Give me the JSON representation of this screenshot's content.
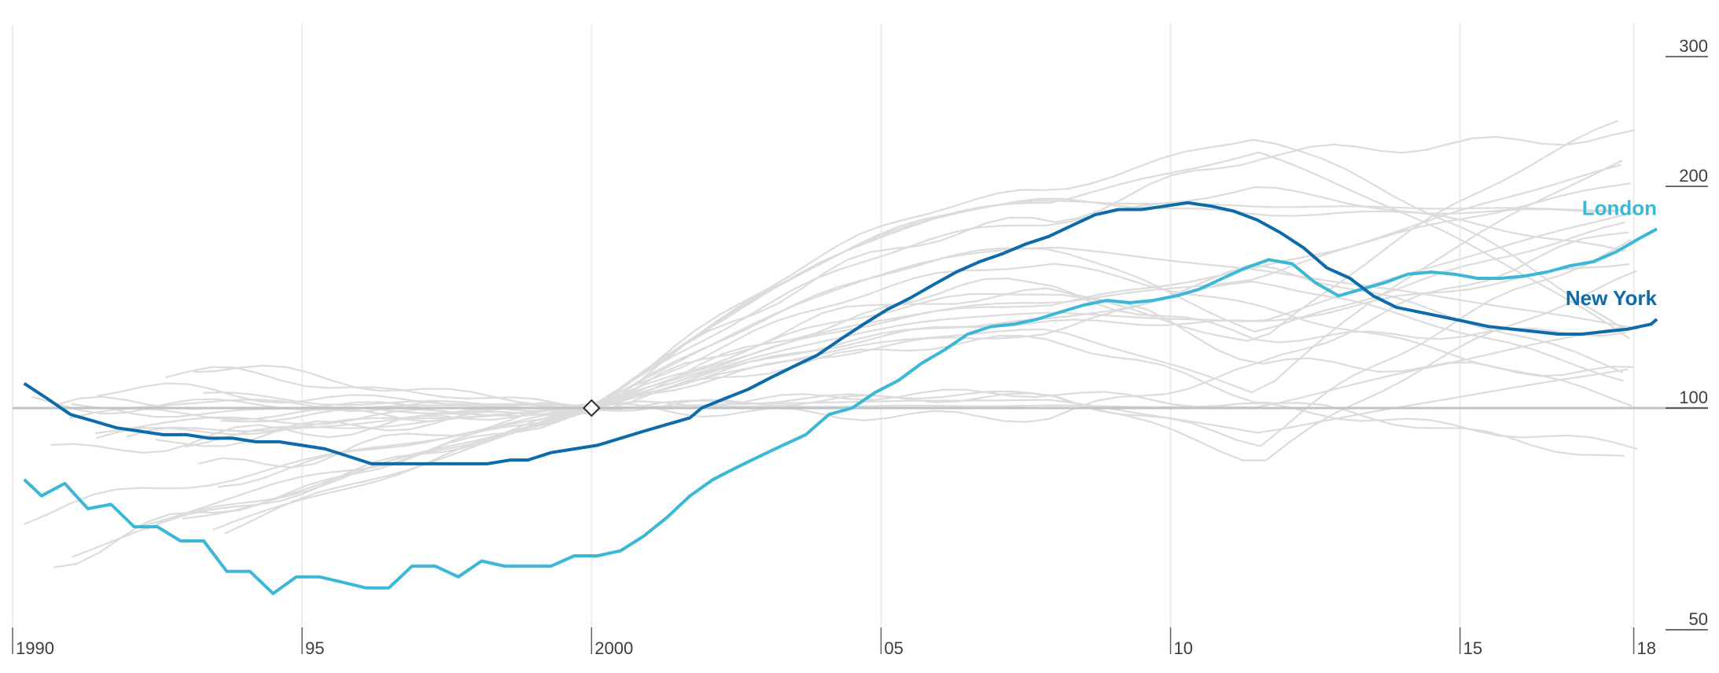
{
  "chart_data": {
    "type": "line",
    "x_axis": {
      "ticks": [
        1990,
        1995,
        2000,
        2005,
        2010,
        2015,
        2018
      ],
      "tick_labels": [
        "1990",
        "95",
        "2000",
        "05",
        "10",
        "15",
        "18"
      ],
      "range": [
        1990,
        2018.4
      ]
    },
    "y_axis": {
      "scale": "log",
      "ticks": [
        50,
        100,
        200,
        300
      ],
      "tick_labels": [
        "50",
        "100",
        "200",
        "300"
      ],
      "range": [
        50,
        340
      ]
    },
    "baseline": {
      "year": 2000,
      "value": 100
    },
    "grid": true,
    "highlight_series": [
      {
        "name": "London",
        "color": "#3ab8d6",
        "points": [
          [
            1990.2,
            80
          ],
          [
            1990.5,
            76
          ],
          [
            1990.9,
            79
          ],
          [
            1991.3,
            73
          ],
          [
            1991.7,
            74
          ],
          [
            1992.1,
            69
          ],
          [
            1992.5,
            69
          ],
          [
            1992.9,
            66
          ],
          [
            1993.3,
            66
          ],
          [
            1993.7,
            60
          ],
          [
            1994.1,
            60
          ],
          [
            1994.5,
            56
          ],
          [
            1994.9,
            59
          ],
          [
            1995.3,
            59
          ],
          [
            1995.7,
            58
          ],
          [
            1996.1,
            57
          ],
          [
            1996.5,
            57
          ],
          [
            1996.9,
            61
          ],
          [
            1997.3,
            61
          ],
          [
            1997.7,
            59
          ],
          [
            1998.1,
            62
          ],
          [
            1998.5,
            61
          ],
          [
            1998.9,
            61
          ],
          [
            1999.3,
            61
          ],
          [
            1999.7,
            63
          ],
          [
            2000.1,
            63
          ],
          [
            2000.5,
            64
          ],
          [
            2000.9,
            67
          ],
          [
            2001.3,
            71
          ],
          [
            2001.7,
            76
          ],
          [
            2002.1,
            80
          ],
          [
            2002.5,
            83
          ],
          [
            2002.9,
            86
          ],
          [
            2003.3,
            89
          ],
          [
            2003.7,
            92
          ],
          [
            2004.1,
            98
          ],
          [
            2004.5,
            100
          ],
          [
            2004.9,
            105
          ],
          [
            2005.3,
            109
          ],
          [
            2005.7,
            115
          ],
          [
            2006.1,
            120
          ],
          [
            2006.5,
            126
          ],
          [
            2006.9,
            129
          ],
          [
            2007.3,
            130
          ],
          [
            2007.7,
            132
          ],
          [
            2008.1,
            135
          ],
          [
            2008.5,
            138
          ],
          [
            2008.9,
            140
          ],
          [
            2009.3,
            139
          ],
          [
            2009.7,
            140
          ],
          [
            2010.1,
            142
          ],
          [
            2010.5,
            145
          ],
          [
            2010.9,
            150
          ],
          [
            2011.3,
            155
          ],
          [
            2011.7,
            159
          ],
          [
            2012.1,
            157
          ],
          [
            2012.5,
            148
          ],
          [
            2012.9,
            142
          ],
          [
            2013.3,
            145
          ],
          [
            2013.7,
            148
          ],
          [
            2014.1,
            152
          ],
          [
            2014.5,
            153
          ],
          [
            2014.9,
            152
          ],
          [
            2015.3,
            150
          ],
          [
            2015.7,
            150
          ],
          [
            2016.1,
            151
          ],
          [
            2016.5,
            153
          ],
          [
            2016.9,
            156
          ],
          [
            2017.3,
            158
          ],
          [
            2017.7,
            163
          ],
          [
            2018.1,
            170
          ],
          [
            2018.4,
            175
          ]
        ]
      },
      {
        "name": "New York",
        "color": "#0d6ba9",
        "points": [
          [
            1990.2,
            108
          ],
          [
            1990.6,
            103
          ],
          [
            1991.0,
            98
          ],
          [
            1991.4,
            96
          ],
          [
            1991.8,
            94
          ],
          [
            1992.2,
            93
          ],
          [
            1992.6,
            92
          ],
          [
            1993.0,
            92
          ],
          [
            1993.4,
            91
          ],
          [
            1993.8,
            91
          ],
          [
            1994.2,
            90
          ],
          [
            1994.6,
            90
          ],
          [
            1995.0,
            89
          ],
          [
            1995.4,
            88
          ],
          [
            1995.8,
            86
          ],
          [
            1996.2,
            84
          ],
          [
            1996.6,
            84
          ],
          [
            1997.0,
            84
          ],
          [
            1997.4,
            84
          ],
          [
            1997.8,
            84
          ],
          [
            1998.2,
            84
          ],
          [
            1998.6,
            85
          ],
          [
            1998.9,
            85
          ],
          [
            1999.3,
            87
          ],
          [
            1999.7,
            88
          ],
          [
            2000.1,
            89
          ],
          [
            2000.5,
            91
          ],
          [
            2000.9,
            93
          ],
          [
            2001.3,
            95
          ],
          [
            2001.7,
            97
          ],
          [
            2001.9,
            100
          ],
          [
            2002.3,
            103
          ],
          [
            2002.7,
            106
          ],
          [
            2003.1,
            110
          ],
          [
            2003.5,
            114
          ],
          [
            2003.9,
            118
          ],
          [
            2004.3,
            124
          ],
          [
            2004.7,
            130
          ],
          [
            2005.1,
            136
          ],
          [
            2005.5,
            141
          ],
          [
            2005.9,
            147
          ],
          [
            2006.3,
            153
          ],
          [
            2006.7,
            158
          ],
          [
            2007.1,
            162
          ],
          [
            2007.5,
            167
          ],
          [
            2007.9,
            171
          ],
          [
            2008.3,
            177
          ],
          [
            2008.7,
            183
          ],
          [
            2009.1,
            186
          ],
          [
            2009.5,
            186
          ],
          [
            2009.9,
            188
          ],
          [
            2010.3,
            190
          ],
          [
            2010.7,
            188
          ],
          [
            2011.1,
            185
          ],
          [
            2011.5,
            180
          ],
          [
            2011.9,
            173
          ],
          [
            2012.3,
            165
          ],
          [
            2012.7,
            155
          ],
          [
            2013.1,
            150
          ],
          [
            2013.5,
            142
          ],
          [
            2013.9,
            137
          ],
          [
            2014.3,
            135
          ],
          [
            2014.7,
            133
          ],
          [
            2015.1,
            131
          ],
          [
            2015.5,
            129
          ],
          [
            2015.9,
            128
          ],
          [
            2016.3,
            127
          ],
          [
            2016.7,
            126
          ],
          [
            2017.1,
            126
          ],
          [
            2017.5,
            127
          ],
          [
            2017.9,
            128
          ],
          [
            2018.3,
            130
          ],
          [
            2018.4,
            132
          ]
        ]
      }
    ],
    "background_series_color": "#dcdcdc"
  },
  "labels": {
    "london": "London",
    "new_york": "New York"
  }
}
